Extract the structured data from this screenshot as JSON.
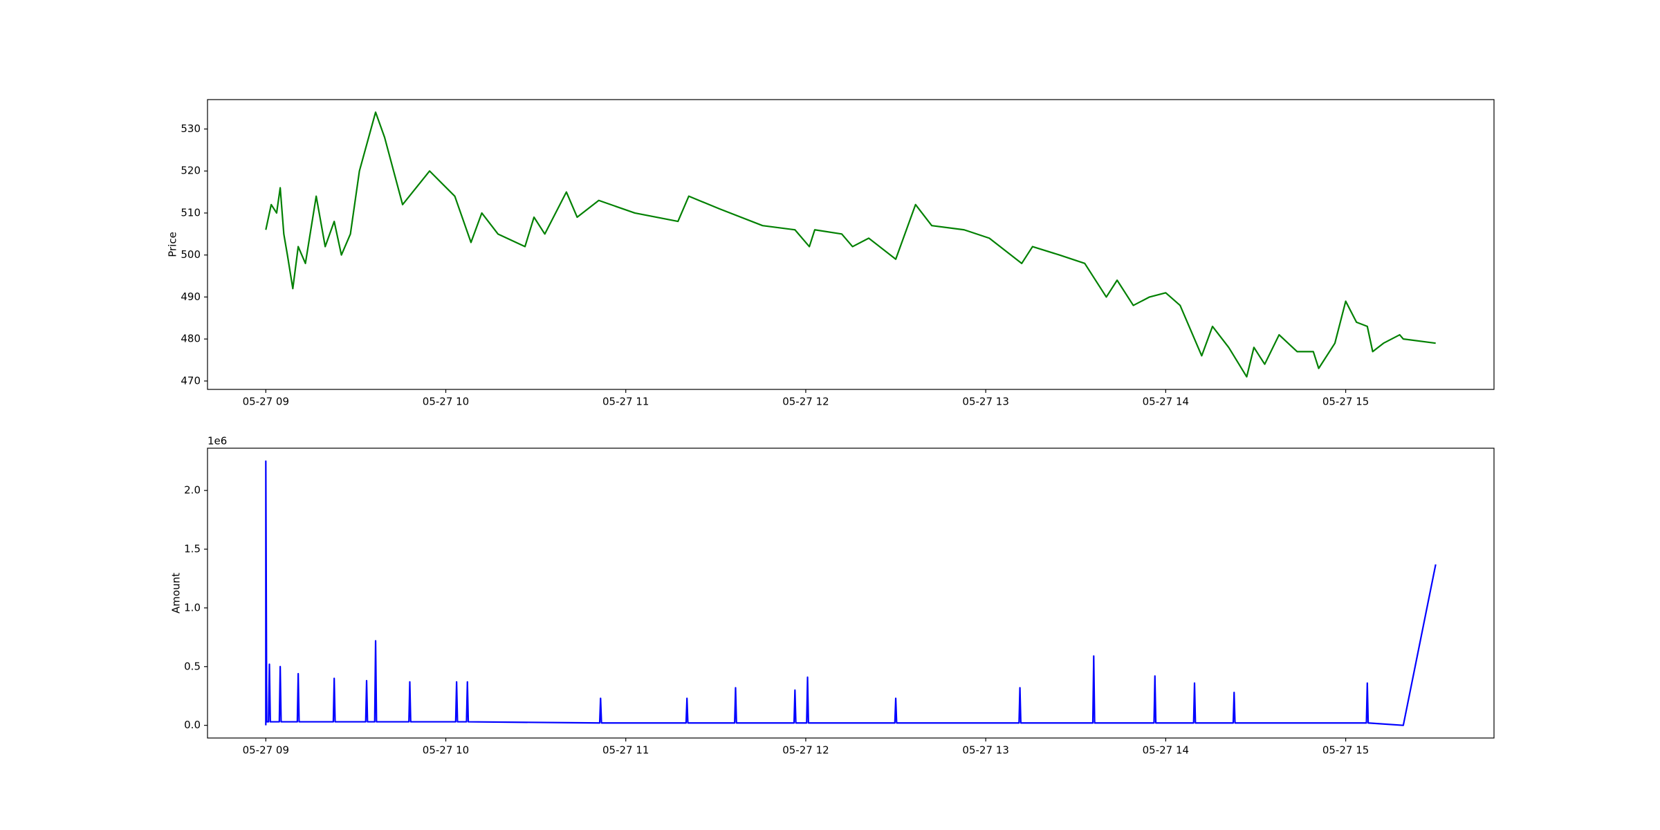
{
  "chart_data": [
    {
      "type": "line",
      "ylabel": "Price",
      "color": "#008000",
      "x": [
        9.0,
        9.03,
        9.06,
        9.08,
        9.1,
        9.12,
        9.15,
        9.18,
        9.22,
        9.28,
        9.33,
        9.38,
        9.42,
        9.47,
        9.52,
        9.61,
        9.66,
        9.76,
        9.91,
        10.05,
        10.14,
        10.2,
        10.29,
        10.44,
        10.49,
        10.55,
        10.67,
        10.73,
        10.85,
        11.05,
        11.29,
        11.35,
        11.52,
        11.76,
        11.94,
        12.02,
        12.05,
        12.2,
        12.26,
        12.35,
        12.5,
        12.61,
        12.7,
        12.88,
        13.02,
        13.2,
        13.26,
        13.41,
        13.55,
        13.67,
        13.73,
        13.82,
        13.91,
        14.0,
        14.08,
        14.2,
        14.26,
        14.35,
        14.45,
        14.49,
        14.55,
        14.63,
        14.73,
        14.82,
        14.85,
        14.94,
        15.0,
        15.06,
        15.12,
        15.15,
        15.21,
        15.3,
        15.32,
        15.5
      ],
      "values": [
        506,
        512,
        510,
        516,
        505,
        500,
        492,
        502,
        498,
        514,
        502,
        508,
        500,
        505,
        520,
        534,
        528,
        512,
        520,
        514,
        503,
        510,
        505,
        502,
        509,
        505,
        515,
        509,
        513,
        510,
        508,
        514,
        511,
        507,
        506,
        502,
        506,
        505,
        502,
        504,
        499,
        512,
        507,
        506,
        504,
        498,
        502,
        500,
        498,
        490,
        494,
        488,
        490,
        491,
        488,
        476,
        483,
        478,
        471,
        478,
        474,
        481,
        477,
        477,
        473,
        479,
        489,
        484,
        483,
        477,
        479,
        481,
        480,
        479
      ],
      "xlim": [
        8.676,
        15.824
      ],
      "xticks": [
        {
          "value": 9,
          "label": "05-27 09"
        },
        {
          "value": 10,
          "label": "05-27 10"
        },
        {
          "value": 11,
          "label": "05-27 11"
        },
        {
          "value": 12,
          "label": "05-27 12"
        },
        {
          "value": 13,
          "label": "05-27 13"
        },
        {
          "value": 14,
          "label": "05-27 14"
        },
        {
          "value": 15,
          "label": "05-27 15"
        }
      ],
      "ylim": [
        468,
        537
      ],
      "yticks": [
        470,
        480,
        490,
        500,
        510,
        520,
        530
      ]
    },
    {
      "type": "line",
      "ylabel": "Amount",
      "y_offset_label": "1e6",
      "color": "#0000ff",
      "x": [
        9.0,
        9.0,
        9.005,
        9.015,
        9.02,
        9.025,
        9.075,
        9.08,
        9.085,
        9.175,
        9.18,
        9.185,
        9.375,
        9.38,
        9.385,
        9.555,
        9.56,
        9.565,
        9.605,
        9.61,
        9.615,
        9.795,
        9.8,
        9.805,
        10.055,
        10.06,
        10.065,
        10.115,
        10.12,
        10.125,
        10.855,
        10.86,
        10.865,
        11.335,
        11.34,
        11.345,
        11.605,
        11.61,
        11.615,
        11.935,
        11.94,
        11.945,
        12.005,
        12.01,
        12.015,
        12.495,
        12.5,
        12.505,
        13.185,
        13.19,
        13.195,
        13.595,
        13.6,
        13.605,
        13.935,
        13.94,
        13.945,
        14.155,
        14.16,
        14.165,
        14.375,
        14.38,
        14.385,
        15.115,
        15.12,
        15.125,
        15.32,
        15.5
      ],
      "values": [
        0,
        2250000,
        30000,
        30000,
        520000,
        30000,
        30000,
        500000,
        30000,
        30000,
        440000,
        30000,
        30000,
        400000,
        30000,
        30000,
        380000,
        30000,
        30000,
        720000,
        30000,
        30000,
        370000,
        30000,
        30000,
        370000,
        30000,
        30000,
        370000,
        30000,
        20000,
        230000,
        20000,
        20000,
        230000,
        20000,
        20000,
        320000,
        20000,
        20000,
        300000,
        20000,
        20000,
        410000,
        20000,
        20000,
        230000,
        20000,
        20000,
        320000,
        20000,
        20000,
        590000,
        20000,
        20000,
        420000,
        20000,
        20000,
        360000,
        20000,
        20000,
        280000,
        20000,
        20000,
        360000,
        20000,
        0,
        1370000
      ],
      "xlim": [
        8.676,
        15.824
      ],
      "xticks": [
        {
          "value": 9,
          "label": "05-27 09"
        },
        {
          "value": 10,
          "label": "05-27 10"
        },
        {
          "value": 11,
          "label": "05-27 11"
        },
        {
          "value": 12,
          "label": "05-27 12"
        },
        {
          "value": 13,
          "label": "05-27 13"
        },
        {
          "value": 14,
          "label": "05-27 14"
        },
        {
          "value": 15,
          "label": "05-27 15"
        }
      ],
      "ylim": [
        -108000,
        2360000
      ],
      "yticks": [
        {
          "value": 0,
          "label": "0.0"
        },
        {
          "value": 500000,
          "label": "0.5"
        },
        {
          "value": 1000000,
          "label": "1.0"
        },
        {
          "value": 1500000,
          "label": "1.5"
        },
        {
          "value": 2000000,
          "label": "2.0"
        }
      ]
    }
  ]
}
